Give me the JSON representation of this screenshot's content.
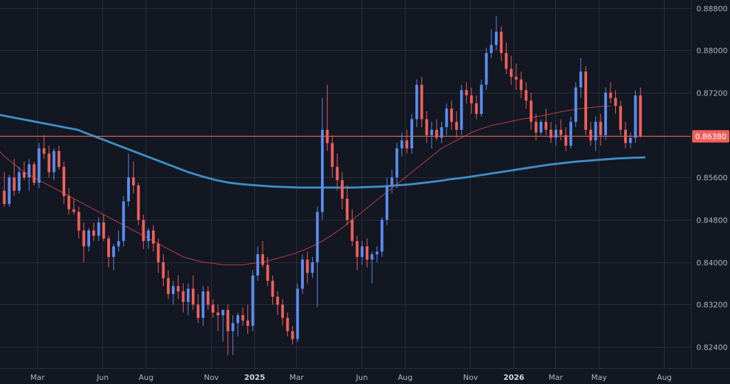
{
  "chart_data": {
    "type": "candlestick",
    "period": "weekly",
    "ylim": [
      0.82,
      0.8895
    ],
    "y_ticks": [
      "0.88800",
      "0.88000",
      "0.87200",
      "0.86400",
      "0.85600",
      "0.84800",
      "0.84000",
      "0.83200",
      "0.82400"
    ],
    "y_tick_values": [
      0.888,
      0.88,
      0.872,
      0.864,
      0.856,
      0.848,
      0.84,
      0.832,
      0.824
    ],
    "x_ticks": [
      {
        "label": "Mar",
        "date": "2024-03-01"
      },
      {
        "label": "Jun",
        "date": "2024-06-01"
      },
      {
        "label": "Aug",
        "date": "2024-08-01"
      },
      {
        "label": "Nov",
        "date": "2024-11-01"
      },
      {
        "label": "2025",
        "date": "2025-01-01",
        "bold": true
      },
      {
        "label": "Mar",
        "date": "2025-03-01"
      },
      {
        "label": "Jun",
        "date": "2025-06-01"
      },
      {
        "label": "Aug",
        "date": "2025-08-01"
      },
      {
        "label": "Nov",
        "date": "2025-11-01"
      },
      {
        "label": "2026",
        "date": "2026-01-01",
        "bold": true
      },
      {
        "label": "Mar",
        "date": "2026-03-01"
      },
      {
        "label": "May",
        "date": "2026-05-01"
      },
      {
        "label": "Aug",
        "date": "2026-08-01"
      }
    ],
    "x_range": [
      "2024-01-09",
      "2026-09-08"
    ],
    "first_candle_date": "2024-01-15",
    "current_price_label": "0.86380",
    "current_price": 0.8638,
    "grid": true,
    "colors": {
      "background": "#131722",
      "grid": "#2a2e39",
      "up": "#5b8def",
      "down": "#f0605a",
      "ma_fast": "#c2414a",
      "ma_slow": "#3d8fc7",
      "price_line": "#f0605a",
      "price_tag_bg": "#f0605a",
      "axis_text": "#b2b5be"
    },
    "ohlc": [
      [
        0.8535,
        0.857,
        0.8505,
        0.851
      ],
      [
        0.851,
        0.8565,
        0.8505,
        0.856
      ],
      [
        0.856,
        0.8595,
        0.8525,
        0.8535
      ],
      [
        0.8535,
        0.858,
        0.853,
        0.857
      ],
      [
        0.857,
        0.859,
        0.8555,
        0.856
      ],
      [
        0.856,
        0.8595,
        0.8535,
        0.8585
      ],
      [
        0.8585,
        0.859,
        0.8545,
        0.855
      ],
      [
        0.855,
        0.8625,
        0.854,
        0.8615
      ],
      [
        0.8615,
        0.864,
        0.8595,
        0.8605
      ],
      [
        0.8605,
        0.862,
        0.856,
        0.857
      ],
      [
        0.857,
        0.8615,
        0.8555,
        0.861
      ],
      [
        0.861,
        0.862,
        0.8575,
        0.858
      ],
      [
        0.858,
        0.859,
        0.851,
        0.8525
      ],
      [
        0.8525,
        0.854,
        0.849,
        0.85
      ],
      [
        0.85,
        0.852,
        0.849,
        0.8495
      ],
      [
        0.8495,
        0.8505,
        0.8445,
        0.846
      ],
      [
        0.846,
        0.8475,
        0.84,
        0.843
      ],
      [
        0.843,
        0.8465,
        0.842,
        0.846
      ],
      [
        0.846,
        0.8475,
        0.844,
        0.845
      ],
      [
        0.845,
        0.8485,
        0.844,
        0.8475
      ],
      [
        0.8475,
        0.849,
        0.844,
        0.8445
      ],
      [
        0.8445,
        0.845,
        0.839,
        0.841
      ],
      [
        0.841,
        0.8435,
        0.8385,
        0.843
      ],
      [
        0.843,
        0.846,
        0.842,
        0.844
      ],
      [
        0.844,
        0.8525,
        0.843,
        0.8515
      ],
      [
        0.8515,
        0.8605,
        0.8505,
        0.856
      ],
      [
        0.856,
        0.859,
        0.853,
        0.8545
      ],
      [
        0.8545,
        0.855,
        0.847,
        0.848
      ],
      [
        0.848,
        0.849,
        0.8425,
        0.844
      ],
      [
        0.844,
        0.8465,
        0.8425,
        0.846
      ],
      [
        0.846,
        0.847,
        0.842,
        0.8435
      ],
      [
        0.8435,
        0.8445,
        0.838,
        0.84
      ],
      [
        0.84,
        0.8415,
        0.8355,
        0.837
      ],
      [
        0.837,
        0.8385,
        0.833,
        0.834
      ],
      [
        0.834,
        0.8365,
        0.832,
        0.8355
      ],
      [
        0.8355,
        0.8375,
        0.833,
        0.8345
      ],
      [
        0.8345,
        0.836,
        0.8305,
        0.8325
      ],
      [
        0.8325,
        0.836,
        0.83,
        0.835
      ],
      [
        0.835,
        0.8375,
        0.831,
        0.832
      ],
      [
        0.832,
        0.834,
        0.8285,
        0.8295
      ],
      [
        0.8295,
        0.8355,
        0.828,
        0.8345
      ],
      [
        0.8345,
        0.8355,
        0.831,
        0.832
      ],
      [
        0.832,
        0.833,
        0.8295,
        0.8305
      ],
      [
        0.8305,
        0.832,
        0.827,
        0.83
      ],
      [
        0.83,
        0.831,
        0.825,
        0.831
      ],
      [
        0.831,
        0.832,
        0.8225,
        0.827
      ],
      [
        0.827,
        0.83,
        0.8225,
        0.8285
      ],
      [
        0.8285,
        0.8305,
        0.826,
        0.83
      ],
      [
        0.83,
        0.8315,
        0.828,
        0.829
      ],
      [
        0.829,
        0.832,
        0.8265,
        0.828
      ],
      [
        0.828,
        0.8385,
        0.827,
        0.8375
      ],
      [
        0.8375,
        0.843,
        0.8365,
        0.8415
      ],
      [
        0.8415,
        0.844,
        0.839,
        0.8395
      ],
      [
        0.8395,
        0.841,
        0.8355,
        0.8365
      ],
      [
        0.8365,
        0.8375,
        0.832,
        0.8335
      ],
      [
        0.8335,
        0.8345,
        0.83,
        0.832
      ],
      [
        0.832,
        0.833,
        0.828,
        0.8295
      ],
      [
        0.8295,
        0.8305,
        0.826,
        0.827
      ],
      [
        0.827,
        0.828,
        0.8245,
        0.8255
      ],
      [
        0.8255,
        0.836,
        0.825,
        0.835
      ],
      [
        0.835,
        0.8415,
        0.834,
        0.8405
      ],
      [
        0.8405,
        0.842,
        0.836,
        0.838
      ],
      [
        0.838,
        0.841,
        0.837,
        0.84
      ],
      [
        0.84,
        0.8505,
        0.8315,
        0.8495
      ],
      [
        0.8495,
        0.871,
        0.848,
        0.865
      ],
      [
        0.865,
        0.8735,
        0.861,
        0.8625
      ],
      [
        0.8625,
        0.864,
        0.856,
        0.858
      ],
      [
        0.858,
        0.8605,
        0.8535,
        0.8555
      ],
      [
        0.8555,
        0.857,
        0.85,
        0.852
      ],
      [
        0.852,
        0.8545,
        0.847,
        0.848
      ],
      [
        0.848,
        0.85,
        0.843,
        0.844
      ],
      [
        0.844,
        0.845,
        0.8385,
        0.841
      ],
      [
        0.841,
        0.844,
        0.8395,
        0.843
      ],
      [
        0.843,
        0.8445,
        0.839,
        0.8405
      ],
      [
        0.8405,
        0.842,
        0.836,
        0.8415
      ],
      [
        0.8415,
        0.843,
        0.84,
        0.842
      ],
      [
        0.842,
        0.8485,
        0.841,
        0.848
      ],
      [
        0.848,
        0.856,
        0.847,
        0.8545
      ],
      [
        0.8545,
        0.8575,
        0.853,
        0.856
      ],
      [
        0.856,
        0.8625,
        0.854,
        0.8615
      ],
      [
        0.8615,
        0.8645,
        0.86,
        0.863
      ],
      [
        0.863,
        0.865,
        0.8605,
        0.8615
      ],
      [
        0.8615,
        0.868,
        0.8605,
        0.867
      ],
      [
        0.867,
        0.8745,
        0.8655,
        0.8735
      ],
      [
        0.8735,
        0.875,
        0.8655,
        0.867
      ],
      [
        0.867,
        0.8685,
        0.8625,
        0.864
      ],
      [
        0.864,
        0.8665,
        0.8615,
        0.865
      ],
      [
        0.865,
        0.867,
        0.863,
        0.8635
      ],
      [
        0.8635,
        0.8665,
        0.8625,
        0.8655
      ],
      [
        0.8655,
        0.87,
        0.864,
        0.869
      ],
      [
        0.869,
        0.8705,
        0.865,
        0.8665
      ],
      [
        0.8665,
        0.8685,
        0.8635,
        0.865
      ],
      [
        0.865,
        0.8735,
        0.864,
        0.8725
      ],
      [
        0.8725,
        0.874,
        0.87,
        0.8715
      ],
      [
        0.8715,
        0.873,
        0.868,
        0.87
      ],
      [
        0.87,
        0.8715,
        0.867,
        0.868
      ],
      [
        0.868,
        0.8745,
        0.8675,
        0.8735
      ],
      [
        0.8735,
        0.8805,
        0.8725,
        0.8795
      ],
      [
        0.8795,
        0.884,
        0.8785,
        0.881
      ],
      [
        0.881,
        0.8865,
        0.88,
        0.8835
      ],
      [
        0.8835,
        0.8845,
        0.878,
        0.8795
      ],
      [
        0.8795,
        0.8815,
        0.8755,
        0.8765
      ],
      [
        0.8765,
        0.879,
        0.8735,
        0.875
      ],
      [
        0.875,
        0.8775,
        0.8725,
        0.8745
      ],
      [
        0.8745,
        0.876,
        0.871,
        0.8725
      ],
      [
        0.8725,
        0.874,
        0.869,
        0.8705
      ],
      [
        0.8705,
        0.872,
        0.865,
        0.8665
      ],
      [
        0.8665,
        0.868,
        0.863,
        0.8645
      ],
      [
        0.8645,
        0.867,
        0.864,
        0.8665
      ],
      [
        0.8665,
        0.869,
        0.864,
        0.865
      ],
      [
        0.865,
        0.8665,
        0.8625,
        0.8635
      ],
      [
        0.8635,
        0.866,
        0.862,
        0.865
      ],
      [
        0.865,
        0.867,
        0.863,
        0.864
      ],
      [
        0.864,
        0.8655,
        0.861,
        0.862
      ],
      [
        0.862,
        0.8675,
        0.8615,
        0.8665
      ],
      [
        0.8665,
        0.874,
        0.8655,
        0.873
      ],
      [
        0.873,
        0.8785,
        0.871,
        0.876
      ],
      [
        0.876,
        0.877,
        0.864,
        0.865
      ],
      [
        0.865,
        0.8665,
        0.862,
        0.863
      ],
      [
        0.863,
        0.8675,
        0.861,
        0.8665
      ],
      [
        0.8665,
        0.868,
        0.862,
        0.864
      ],
      [
        0.864,
        0.873,
        0.863,
        0.872
      ],
      [
        0.872,
        0.874,
        0.87,
        0.871
      ],
      [
        0.871,
        0.8725,
        0.868,
        0.8695
      ],
      [
        0.8695,
        0.8705,
        0.864,
        0.865
      ],
      [
        0.865,
        0.8665,
        0.8615,
        0.8625
      ],
      [
        0.8625,
        0.8645,
        0.8615,
        0.8635
      ],
      [
        0.8635,
        0.8725,
        0.8625,
        0.8715
      ],
      [
        0.8715,
        0.873,
        0.8635,
        0.8638
      ]
    ],
    "ma_fast": [
      [
        0.862,
        0.86,
        0.8585,
        0.857,
        0.856,
        0.855,
        0.854,
        0.853,
        0.852,
        0.851,
        0.85,
        0.849,
        0.848,
        0.847,
        0.846,
        0.845,
        0.844,
        0.843,
        0.842,
        0.841,
        0.8405,
        0.84,
        0.8398,
        0.8395,
        0.8395,
        0.8395,
        0.8398,
        0.84,
        0.8405,
        0.841,
        0.8415,
        0.8422,
        0.843,
        0.844,
        0.8452,
        0.8465,
        0.848,
        0.8495,
        0.851,
        0.8525,
        0.854,
        0.8555,
        0.857,
        0.8585,
        0.86,
        0.8615,
        0.8625,
        0.8635,
        0.8645,
        0.8652,
        0.8658,
        0.8662,
        0.8666,
        0.867,
        0.8673,
        0.8676,
        0.868,
        0.8684,
        0.8687,
        0.869,
        0.8692,
        0.8694,
        0.8695
      ]
    ],
    "ma_slow_values": [
      0.868,
      0.8675,
      0.867,
      0.8665,
      0.866,
      0.8655,
      0.865,
      0.864,
      0.863,
      0.862,
      0.861,
      0.86,
      0.859,
      0.858,
      0.857,
      0.8562,
      0.8555,
      0.855,
      0.8547,
      0.8545,
      0.8543,
      0.8542,
      0.8541,
      0.8541,
      0.8541,
      0.8541,
      0.8541,
      0.8542,
      0.8543,
      0.8545,
      0.8547,
      0.855,
      0.8553,
      0.8557,
      0.856,
      0.8564,
      0.8568,
      0.8572,
      0.8576,
      0.858,
      0.8584,
      0.8587,
      0.859,
      0.8592,
      0.8594,
      0.8596,
      0.8597,
      0.8598
    ]
  }
}
